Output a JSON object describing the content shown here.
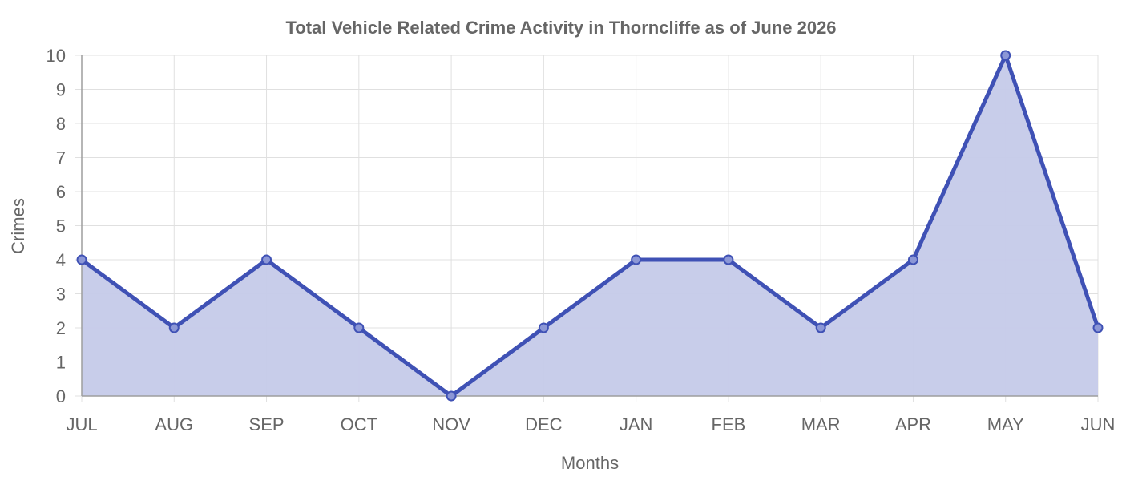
{
  "chart_data": {
    "type": "area",
    "title": "Total Vehicle Related Crime Activity in Thorncliffe as of June 2026",
    "xlabel": "Months",
    "ylabel": "Crimes",
    "categories": [
      "JUL",
      "AUG",
      "SEP",
      "OCT",
      "NOV",
      "DEC",
      "JAN",
      "FEB",
      "MAR",
      "APR",
      "MAY",
      "JUN"
    ],
    "series": [
      {
        "values": [
          4,
          2,
          4,
          2,
          0,
          2,
          4,
          4,
          2,
          4,
          10,
          2
        ]
      }
    ],
    "ylim": [
      0,
      10
    ],
    "yticks": [
      "0",
      "1",
      "2",
      "3",
      "4",
      "5",
      "6",
      "7",
      "8",
      "9",
      "10"
    ],
    "grid": true,
    "legend": "none",
    "colors": {
      "line": "#3f51b5",
      "fill": "#c5cae9",
      "grid": "#e0e0e0",
      "axis": "#9e9e9e",
      "text": "#666666"
    }
  }
}
